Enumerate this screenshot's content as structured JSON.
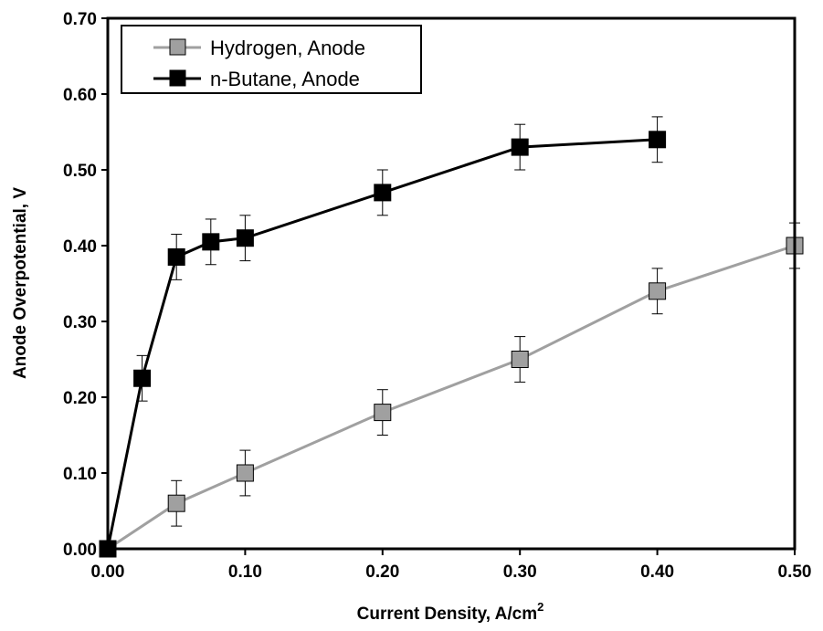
{
  "chart_data": {
    "type": "line",
    "xlabel": "Current Density, A/cm",
    "xlabel_sup": "2",
    "ylabel": "Anode Overpotential, V",
    "xlim": [
      0,
      0.5
    ],
    "ylim": [
      0,
      0.7
    ],
    "x_ticks": [
      "0.00",
      "0.10",
      "0.20",
      "0.30",
      "0.40",
      "0.50"
    ],
    "y_ticks": [
      "0.00",
      "0.10",
      "0.20",
      "0.30",
      "0.40",
      "0.50",
      "0.60",
      "0.70"
    ],
    "grid": false,
    "legend_position": "top-left",
    "series": [
      {
        "name": "Hydrogen, Anode",
        "color": "#a0a0a0",
        "marker": "square",
        "x": [
          0.0,
          0.05,
          0.1,
          0.2,
          0.3,
          0.4,
          0.5
        ],
        "y": [
          0.0,
          0.06,
          0.1,
          0.18,
          0.25,
          0.34,
          0.4
        ],
        "error": [
          0.0,
          0.03,
          0.03,
          0.03,
          0.03,
          0.03,
          0.03
        ]
      },
      {
        "name": "n-Butane, Anode",
        "color": "#000000",
        "marker": "square",
        "x": [
          0.0,
          0.025,
          0.05,
          0.075,
          0.1,
          0.2,
          0.3,
          0.4
        ],
        "y": [
          0.0,
          0.225,
          0.385,
          0.405,
          0.41,
          0.47,
          0.53,
          0.54
        ],
        "error": [
          0.0,
          0.03,
          0.03,
          0.03,
          0.03,
          0.03,
          0.03,
          0.03
        ]
      }
    ]
  }
}
